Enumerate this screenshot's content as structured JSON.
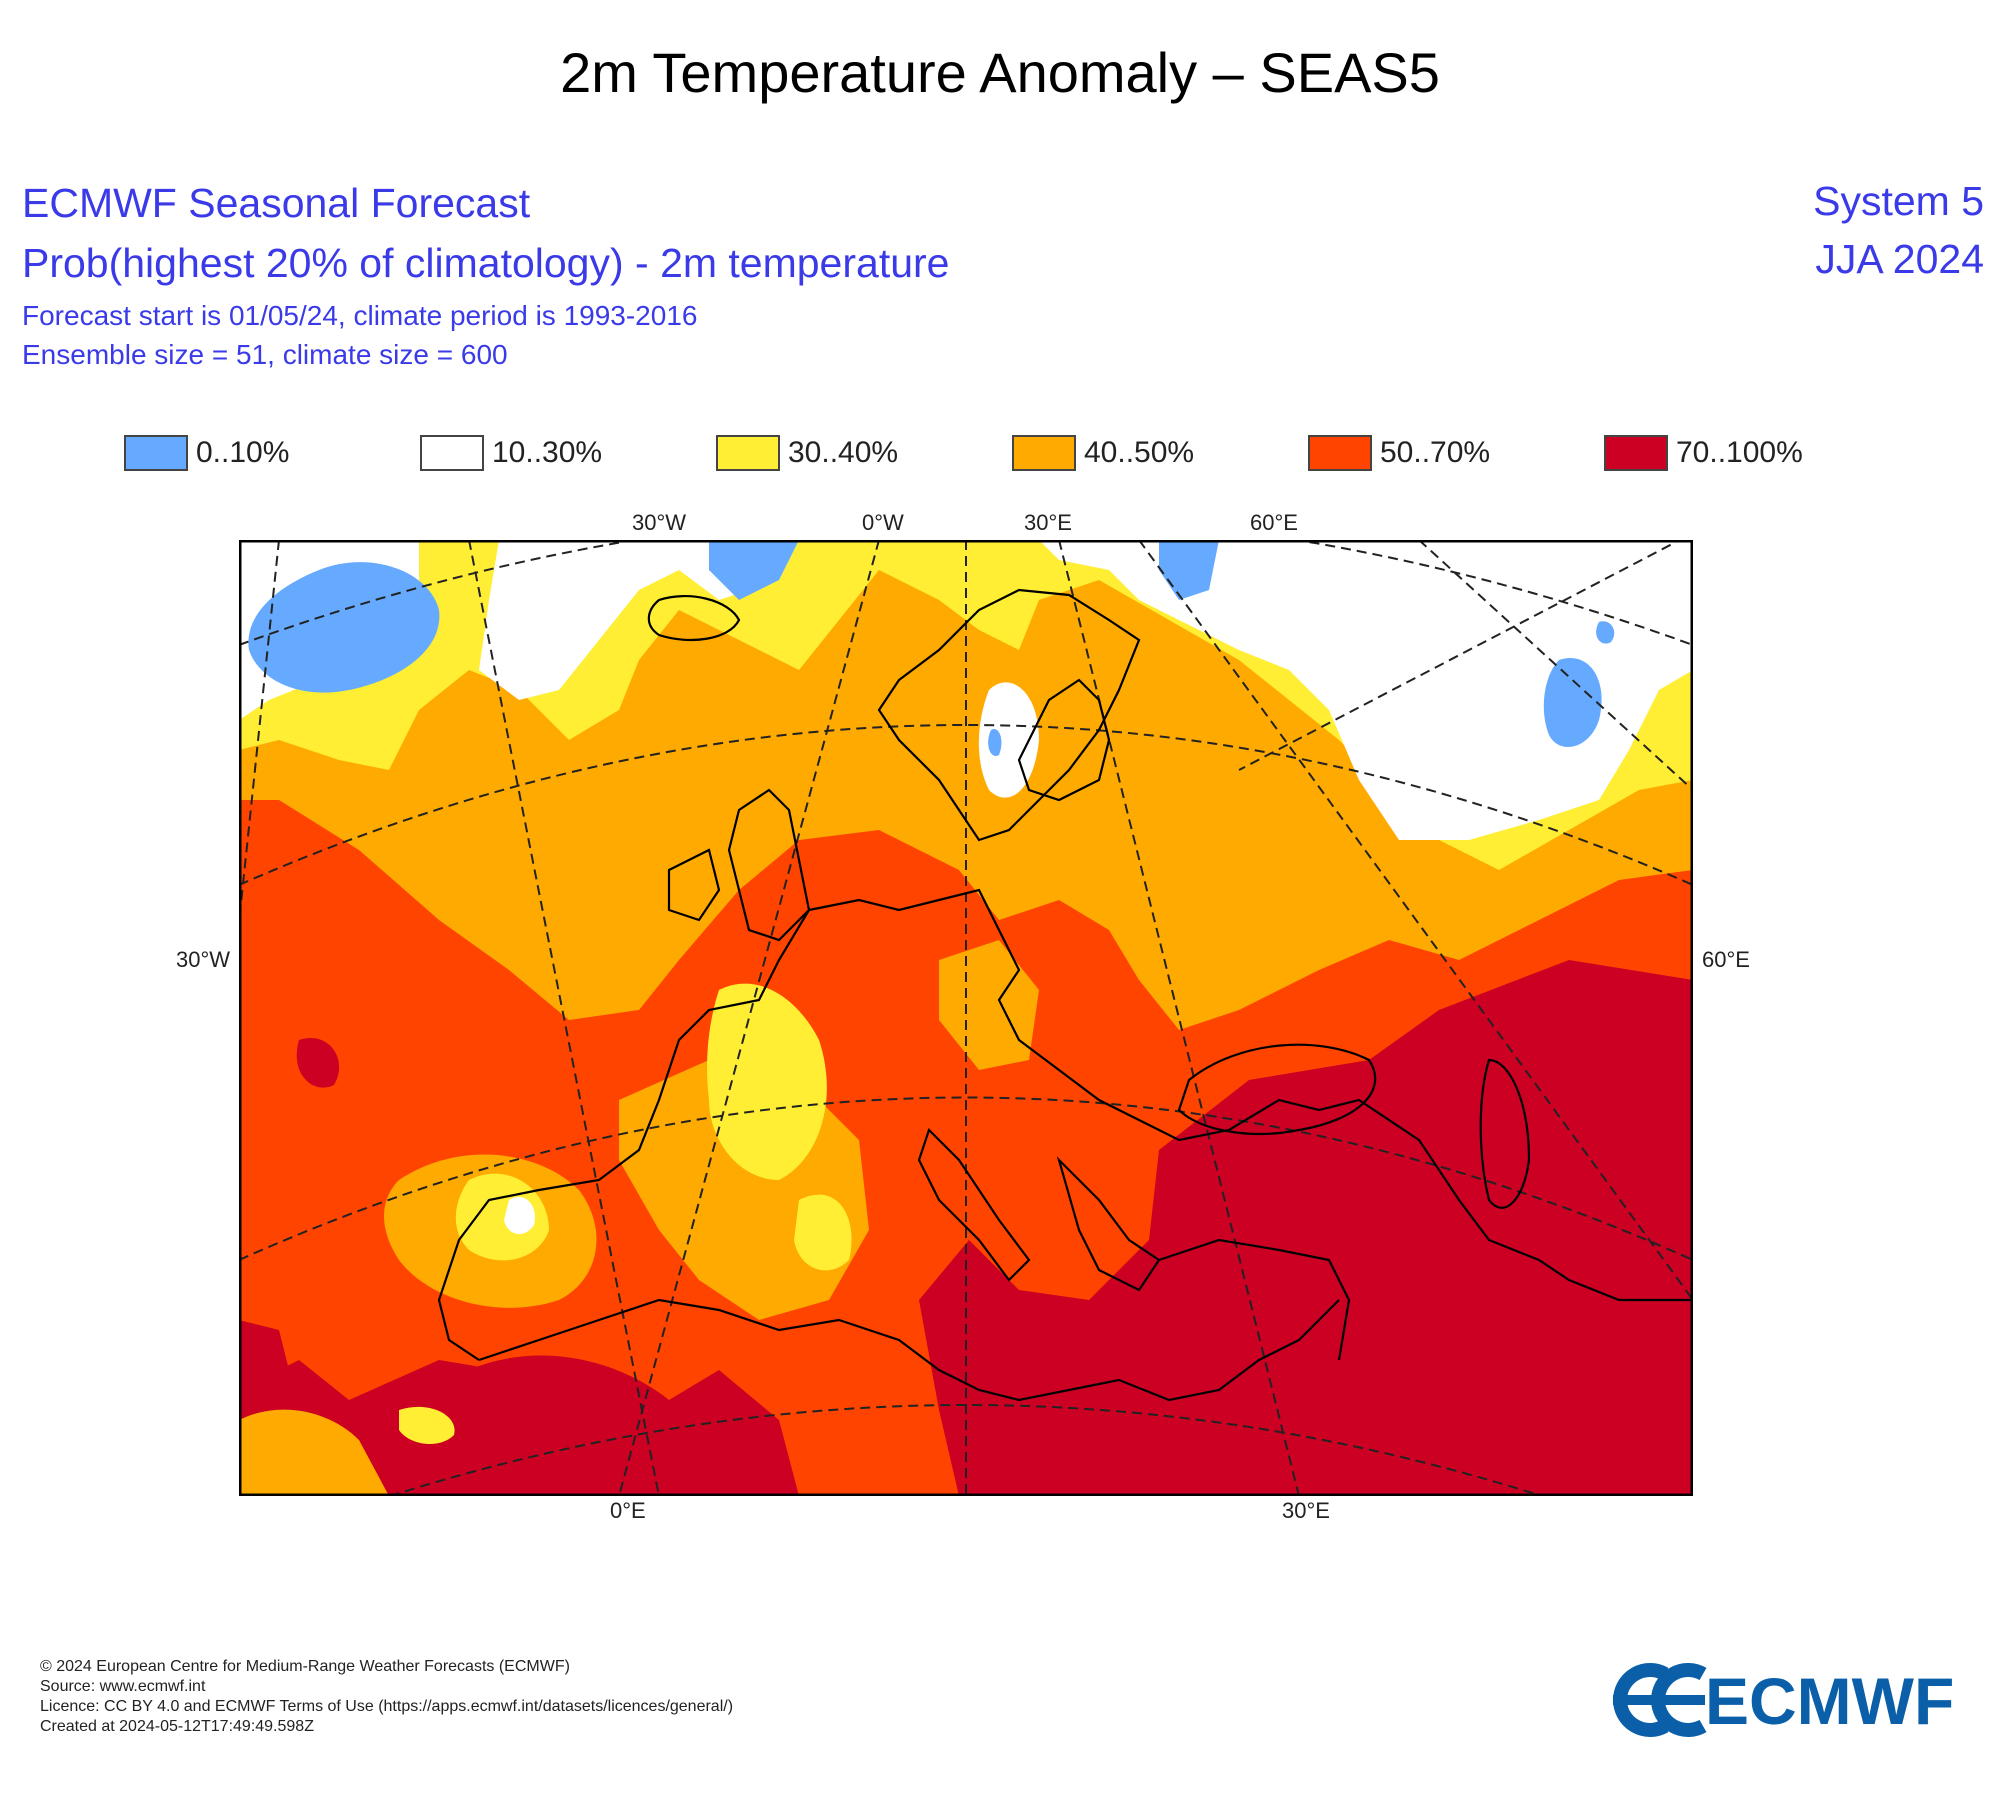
{
  "page_title": "2m Temperature Anomaly – SEAS5",
  "header": {
    "line1": "ECMWF Seasonal Forecast",
    "line2": "Prob(highest 20% of climatology) - 2m temperature",
    "line3": "Forecast start is 01/05/24, climate period is 1993-2016",
    "line4": "Ensemble size = 51, climate size = 600",
    "system": "System 5",
    "season": "JJA 2024"
  },
  "legend": [
    {
      "label": "0..10%",
      "color": "#66aaff"
    },
    {
      "label": "10..30%",
      "color": "#ffffff"
    },
    {
      "label": "30..40%",
      "color": "#ffee33"
    },
    {
      "label": "40..50%",
      "color": "#ffaa00"
    },
    {
      "label": "50..70%",
      "color": "#ff4400"
    },
    {
      "label": "70..100%",
      "color": "#cc0022"
    }
  ],
  "axis_labels": {
    "top": [
      "30°W",
      "0°W",
      "30°E",
      "60°E"
    ],
    "left": "30°W",
    "right": "60°E",
    "bottom": [
      "0°E",
      "30°E"
    ]
  },
  "footer": {
    "line1": "© 2024 European Centre for Medium-Range Weather Forecasts (ECMWF)",
    "line2": "Source: www.ecmwf.int",
    "line3": "Licence: CC BY 4.0 and ECMWF Terms of Use (https://apps.ecmwf.int/datasets/licences/general/)",
    "line4": "Created at 2024-05-12T17:49:49.598Z"
  },
  "logo_text": "ECMWF",
  "colors": {
    "header_blue": "#3a3ae8",
    "logo_blue": "#0a5fa8"
  }
}
